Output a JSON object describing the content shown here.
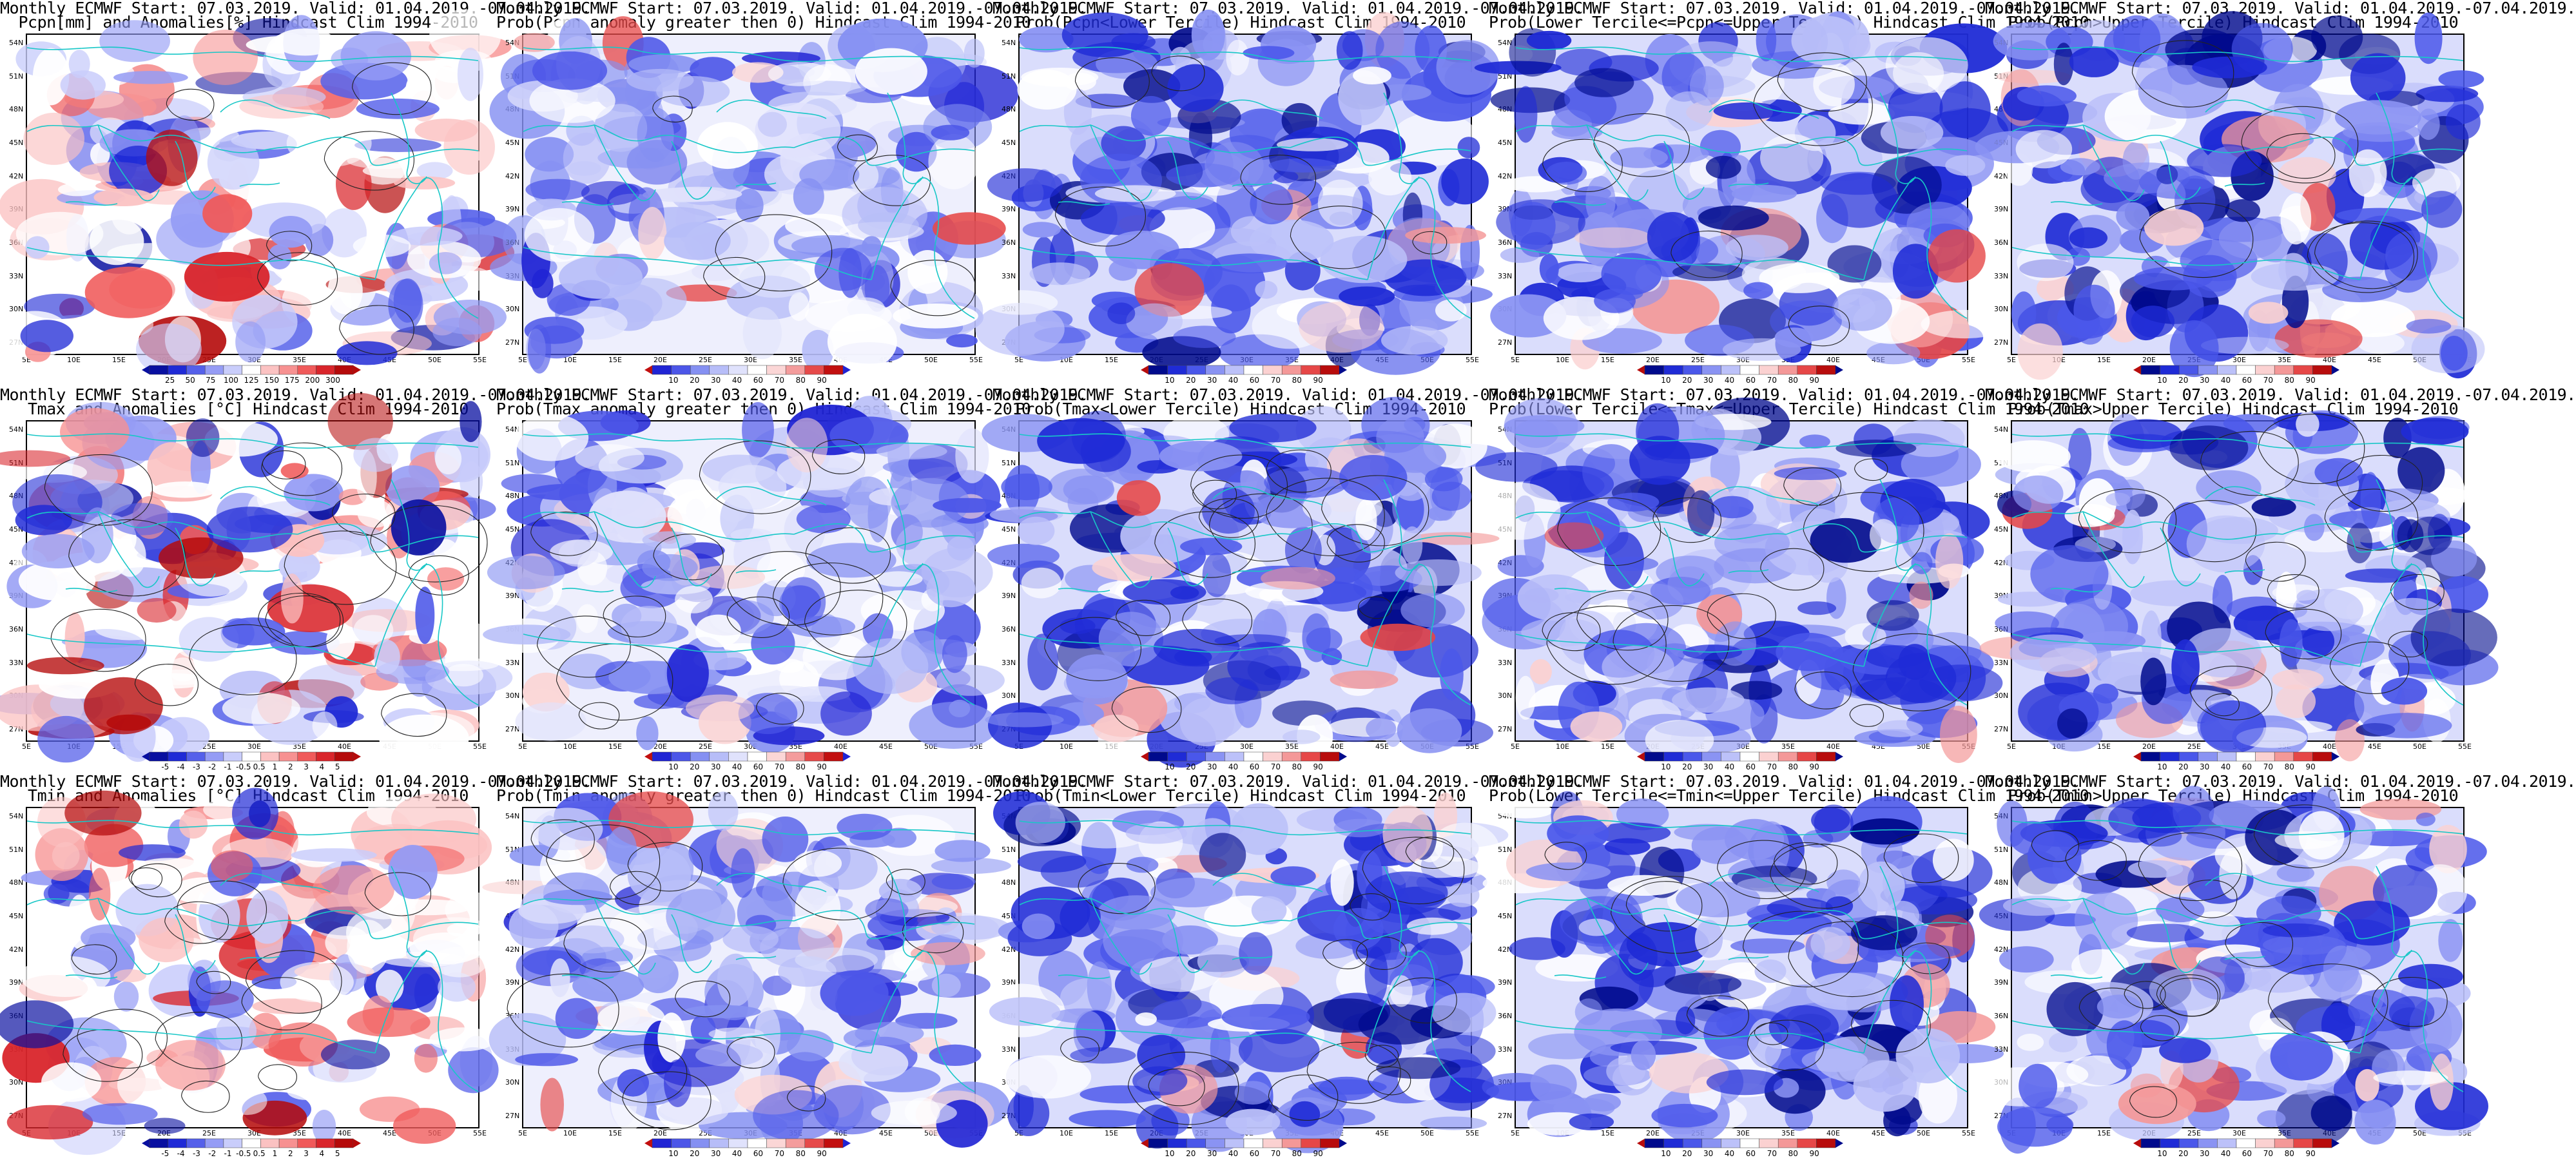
{
  "figure": {
    "lat_ticks": [
      "54N",
      "51N",
      "48N",
      "45N",
      "42N",
      "39N",
      "36N",
      "33N",
      "30N",
      "27N"
    ],
    "lon_ticks": [
      "5E",
      "10E",
      "15E",
      "20E",
      "25E",
      "30E",
      "35E",
      "40E",
      "45E",
      "50E",
      "55E"
    ],
    "palettes": {
      "anomaly": [
        "#b50a0a",
        "#d9252b",
        "#f05a5a",
        "#f79191",
        "#fbc2c2",
        "#ffffff",
        "#c9cdfb",
        "#959cf5",
        "#5560ea",
        "#1f2ad6",
        "#080fa0"
      ],
      "prob_warm": [
        "#2024d4",
        "#4c56e8",
        "#8590f2",
        "#b7bdf8",
        "#e0e2fc",
        "#ffffff",
        "#fbd6d6",
        "#f49c9c",
        "#e64a4a",
        "#c20f0f"
      ],
      "prob_cold": [
        "#000a8c",
        "#1f2bd6",
        "#4a57ea",
        "#8a93f3",
        "#bcc1f9",
        "#ffffff",
        "#fbd1d1",
        "#f49898",
        "#e64747",
        "#b80c0c"
      ]
    },
    "panels": [
      {
        "title1": "Monthly ECMWF Start: 07.03.2019. Valid: 01.04.2019.-07.04.2019.",
        "title2": "Pcpn[mm] and Anomalies[%]",
        "title3": "Hindcast Clim 1994-2010",
        "palette": "anomaly",
        "colorbar_labels": [
          "25",
          "50",
          "75",
          "100",
          "125",
          "150",
          "175",
          "200",
          "300"
        ],
        "contours": "Pcpn"
      },
      {
        "title1": "Monthly ECMWF Start: 07.03.2019. Valid: 01.04.2019.-07.04.2019.",
        "title2": "Prob(Pcpn anomaly greater then 0)",
        "title3": "Hindcast Clim 1994-2010",
        "palette": "prob_warm",
        "colorbar_labels": [
          "10",
          "20",
          "30",
          "40",
          "60",
          "70",
          "80",
          "90"
        ],
        "contours": "Pcpn"
      },
      {
        "title1": "Monthly ECMWF Start: 07.03.2019. Valid: 01.04.2019.-07.04.2019.",
        "title2": "Prob(Pcpn<Lower Tercile)",
        "title3": "Hindcast Clim 1994-2010",
        "palette": "prob_cold",
        "colorbar_labels": [
          "10",
          "20",
          "30",
          "40",
          "60",
          "70",
          "80",
          "90"
        ],
        "contours": "Pcpn"
      },
      {
        "title1": "Monthly ECMWF Start: 07.03.2019. Valid: 01.04.2019.-07.04.2019.",
        "title2": "Prob(Lower Tercile<=Pcpn<=Upper Tercile)",
        "title3": "Hindcast Clim 1994-2010",
        "palette": "prob_cold",
        "colorbar_labels": [
          "10",
          "20",
          "30",
          "40",
          "60",
          "70",
          "80",
          "90"
        ],
        "contours": "Pcpn"
      },
      {
        "title1": "Monthly ECMWF Start: 07.03.2019. Valid: 01.04.2019.-07.04.2019.",
        "title2": "Prob(Pcpn>Upper Tercile)",
        "title3": "Hindcast Clim 1994-2010",
        "palette": "prob_cold",
        "colorbar_labels": [
          "10",
          "20",
          "30",
          "40",
          "60",
          "70",
          "80",
          "90"
        ],
        "contours": "Pcpn"
      },
      {
        "title1": "Monthly ECMWF Start: 07.03.2019. Valid: 01.04.2019.-07.04.2019.",
        "title2": "Tmax and Anomalies [°C]",
        "title3": "Hindcast Clim 1994-2010",
        "palette": "anomaly",
        "colorbar_labels": [
          "-5",
          "-4",
          "-3",
          "-2",
          "-1",
          "-0.5",
          "0.5",
          "1",
          "2",
          "3",
          "4",
          "5"
        ],
        "contours": "T"
      },
      {
        "title1": "Monthly ECMWF Start: 07.03.2019. Valid: 01.04.2019.-07.04.2019.",
        "title2": "Prob(Tmax anomaly greater then 0)",
        "title3": "Hindcast Clim 1994-2010",
        "palette": "prob_warm",
        "colorbar_labels": [
          "10",
          "20",
          "30",
          "40",
          "60",
          "70",
          "80",
          "90"
        ],
        "contours": "T"
      },
      {
        "title1": "Monthly ECMWF Start: 07.03.2019. Valid: 01.04.2019.-07.04.2019.",
        "title2": "Prob(Tmax<Lower Tercile)",
        "title3": "Hindcast Clim 1994-2010",
        "palette": "prob_cold",
        "colorbar_labels": [
          "10",
          "20",
          "30",
          "40",
          "60",
          "70",
          "80",
          "90"
        ],
        "contours": "T"
      },
      {
        "title1": "Monthly ECMWF Start: 07.03.2019. Valid: 01.04.2019.-07.04.2019.",
        "title2": "Prob(Lower Tercile<=Tmax<=Upper Tercile)",
        "title3": "Hindcast Clim 1994-2010",
        "palette": "prob_cold",
        "colorbar_labels": [
          "10",
          "20",
          "30",
          "40",
          "60",
          "70",
          "80",
          "90"
        ],
        "contours": "T"
      },
      {
        "title1": "Monthly ECMWF Start: 07.03.2019. Valid: 01.04.2019.-07.04.2019.",
        "title2": "Prob(Tmax>Upper Tercile)",
        "title3": "Hindcast Clim 1994-2010",
        "palette": "prob_cold",
        "colorbar_labels": [
          "10",
          "20",
          "30",
          "40",
          "60",
          "70",
          "80",
          "90"
        ],
        "contours": "T"
      },
      {
        "title1": "Monthly ECMWF Start: 07.03.2019. Valid: 01.04.2019.-07.04.2019.",
        "title2": "Tmin and Anomalies [°C]",
        "title3": "Hindcast Clim 1994-2010",
        "palette": "anomaly",
        "colorbar_labels": [
          "-5",
          "-4",
          "-3",
          "-2",
          "-1",
          "-0.5",
          "0.5",
          "1",
          "2",
          "3",
          "4",
          "5"
        ],
        "contours": "T"
      },
      {
        "title1": "Monthly ECMWF Start: 07.03.2019. Valid: 01.04.2019.-07.04.2019.",
        "title2": "Prob(Tmin anomaly greater then 0)",
        "title3": "Hindcast Clim 1994-2010",
        "palette": "prob_warm",
        "colorbar_labels": [
          "10",
          "20",
          "30",
          "40",
          "60",
          "70",
          "80",
          "90"
        ],
        "contours": "T"
      },
      {
        "title1": "Monthly ECMWF Start: 07.03.2019. Valid: 01.04.2019.-07.04.2019.",
        "title2": "Prob(Tmin<Lower Tercile)",
        "title3": "Hindcast Clim 1994-2010",
        "palette": "prob_cold",
        "colorbar_labels": [
          "10",
          "20",
          "30",
          "40",
          "60",
          "70",
          "80",
          "90"
        ],
        "contours": "T"
      },
      {
        "title1": "Monthly ECMWF Start: 07.03.2019. Valid: 01.04.2019.-07.04.2019.",
        "title2": "Prob(Lower Tercile<=Tmin<=Upper Tercile)",
        "title3": "Hindcast Clim 1994-2010",
        "palette": "prob_cold",
        "colorbar_labels": [
          "10",
          "20",
          "30",
          "40",
          "60",
          "70",
          "80",
          "90"
        ],
        "contours": "T"
      },
      {
        "title1": "Monthly ECMWF Start: 07.03.2019. Valid: 01.04.2019.-07.04.2019.",
        "title2": "Prob(Tmin>Upper Tercile)",
        "title3": "Hindcast Clim 1994-2010",
        "palette": "prob_cold",
        "colorbar_labels": [
          "10",
          "20",
          "30",
          "40",
          "60",
          "70",
          "80",
          "90"
        ],
        "contours": "T"
      }
    ]
  }
}
